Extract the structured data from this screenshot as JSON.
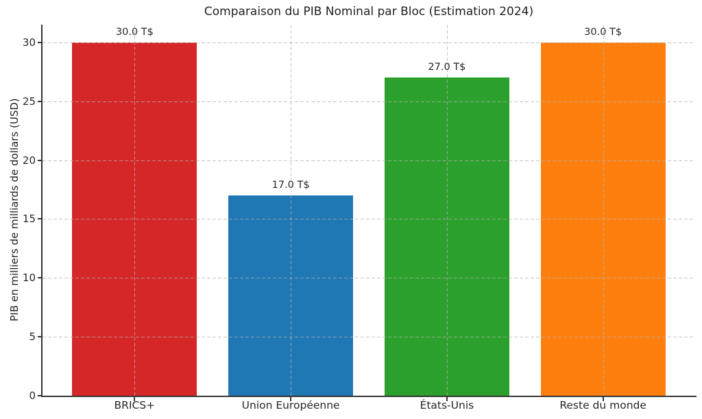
{
  "chart_data": {
    "type": "bar",
    "title": "Comparaison du PIB Nominal par Bloc (Estimation 2024)",
    "xlabel": "",
    "ylabel": "PIB en milliers de milliards de dollars (USD)",
    "categories": [
      "BRICS+",
      "Union Européenne",
      "États-Unis",
      "Reste du monde"
    ],
    "values": [
      30.0,
      17.0,
      27.0,
      30.0
    ],
    "bar_labels": [
      "30.0 T$",
      "17.0 T$",
      "27.0 T$",
      "30.0 T$"
    ],
    "bar_colors": [
      "#d62728",
      "#1f77b4",
      "#2ca02c",
      "#ff7f0e"
    ],
    "yticks": [
      0,
      5,
      10,
      15,
      20,
      25,
      30
    ],
    "ytick_labels": [
      "0",
      "5",
      "10",
      "15",
      "20",
      "25",
      "30"
    ],
    "ylim": [
      0,
      31.5
    ],
    "grid": true,
    "grid_style": "dashed",
    "grid_color": "#b0b0b0",
    "legend": false,
    "text_color": "#262626",
    "spine_color": "#333333",
    "background_color": "#ffffff"
  }
}
